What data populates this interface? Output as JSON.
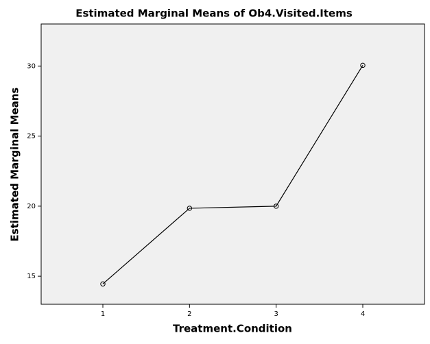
{
  "chart_data": {
    "type": "line",
    "title": "Estimated Marginal Means of Ob4.Visited.Items",
    "x_label": "Treatment.Condition",
    "y_label": "Estimated Marginal Means",
    "categories": [
      "1",
      "2",
      "3",
      "4"
    ],
    "values": [
      14.45,
      19.85,
      20.0,
      30.05
    ],
    "color": "#000000",
    "ylim": [
      13,
      33
    ],
    "yticks": [
      15,
      20,
      25,
      30
    ],
    "grid": false
  }
}
